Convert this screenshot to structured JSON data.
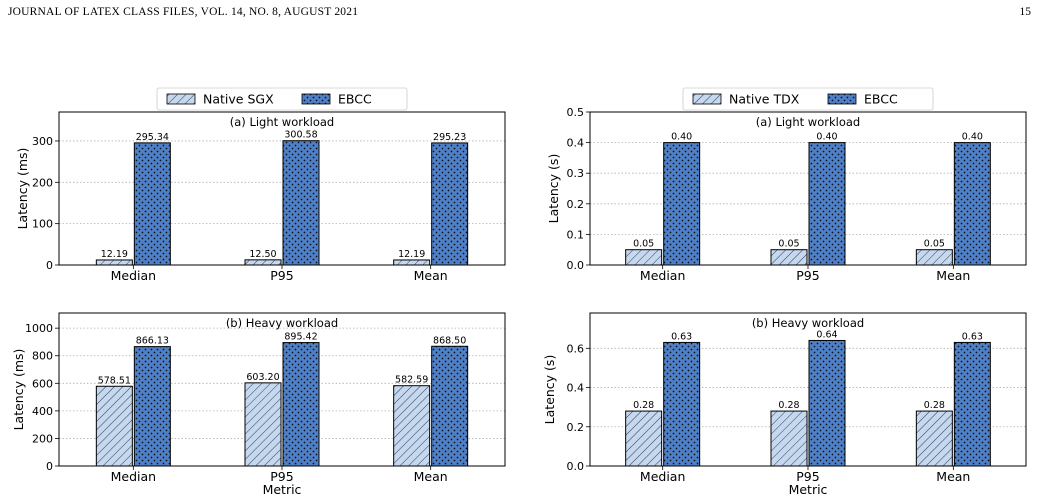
{
  "page": {
    "journal": "JOURNAL OF LATEX CLASS FILES, VOL. 14, NO. 8, AUGUST 2021",
    "page_number": "15"
  },
  "colors": {
    "native_fill": "#c6d8ee",
    "ebcc_fill": "#4f7fc4",
    "edge": "#000000",
    "grid": "#b0b0b0"
  },
  "chart_data": [
    {
      "type": "bar",
      "subtitle": "(a) Light workload",
      "xlabel": "",
      "ylabel": "Latency (ms)",
      "ylim": [
        0,
        370
      ],
      "yticks": [
        0,
        100,
        200,
        300
      ],
      "ytick_labels": [
        "0",
        "100",
        "200",
        "300"
      ],
      "categories": [
        "Median",
        "P95",
        "Mean"
      ],
      "legend": "top-center",
      "grid": "y-dotted",
      "series": [
        {
          "name": "Native SGX",
          "values": [
            12.19,
            12.5,
            12.19
          ],
          "labels": [
            "12.19",
            "12.50",
            "12.19"
          ]
        },
        {
          "name": "EBCC",
          "values": [
            295.34,
            300.58,
            295.23
          ],
          "labels": [
            "295.34",
            "300.58",
            "295.23"
          ]
        }
      ]
    },
    {
      "type": "bar",
      "subtitle": "(b) Heavy workload",
      "xlabel": "Metric",
      "ylabel": "Latency (ms)",
      "ylim": [
        0,
        1110
      ],
      "yticks": [
        0,
        200,
        400,
        600,
        800,
        1000
      ],
      "ytick_labels": [
        "0",
        "200",
        "400",
        "600",
        "800",
        "1000"
      ],
      "categories": [
        "Median",
        "P95",
        "Mean"
      ],
      "grid": "y-dotted",
      "series": [
        {
          "name": "Native SGX",
          "values": [
            578.51,
            603.2,
            582.59
          ],
          "labels": [
            "578.51",
            "603.20",
            "582.59"
          ]
        },
        {
          "name": "EBCC",
          "values": [
            866.13,
            895.42,
            868.5
          ],
          "labels": [
            "866.13",
            "895.42",
            "868.50"
          ]
        }
      ]
    },
    {
      "type": "bar",
      "subtitle": "(a) Light workload",
      "xlabel": "",
      "ylabel": "Latency (s)",
      "ylim": [
        0,
        0.5
      ],
      "yticks": [
        0,
        0.1,
        0.2,
        0.3,
        0.4,
        0.5
      ],
      "ytick_labels": [
        "0.0",
        "0.1",
        "0.2",
        "0.3",
        "0.4",
        "0.5"
      ],
      "categories": [
        "Median",
        "P95",
        "Mean"
      ],
      "legend": "top-center",
      "grid": "y-dotted",
      "series": [
        {
          "name": "Native TDX",
          "values": [
            0.05,
            0.05,
            0.05
          ],
          "labels": [
            "0.05",
            "0.05",
            "0.05"
          ]
        },
        {
          "name": "EBCC",
          "values": [
            0.4,
            0.4,
            0.4
          ],
          "labels": [
            "0.40",
            "0.40",
            "0.40"
          ]
        }
      ]
    },
    {
      "type": "bar",
      "subtitle": "(b) Heavy workload",
      "xlabel": "Metric",
      "ylabel": "Latency (s)",
      "ylim": [
        0,
        0.78
      ],
      "yticks": [
        0,
        0.2,
        0.4,
        0.6
      ],
      "ytick_labels": [
        "0.0",
        "0.2",
        "0.4",
        "0.6"
      ],
      "categories": [
        "Median",
        "P95",
        "Mean"
      ],
      "grid": "y-dotted",
      "series": [
        {
          "name": "Native TDX",
          "values": [
            0.28,
            0.28,
            0.28
          ],
          "labels": [
            "0.28",
            "0.28",
            "0.28"
          ]
        },
        {
          "name": "EBCC",
          "values": [
            0.63,
            0.64,
            0.63
          ],
          "labels": [
            "0.63",
            "0.64",
            "0.63"
          ]
        }
      ]
    }
  ]
}
